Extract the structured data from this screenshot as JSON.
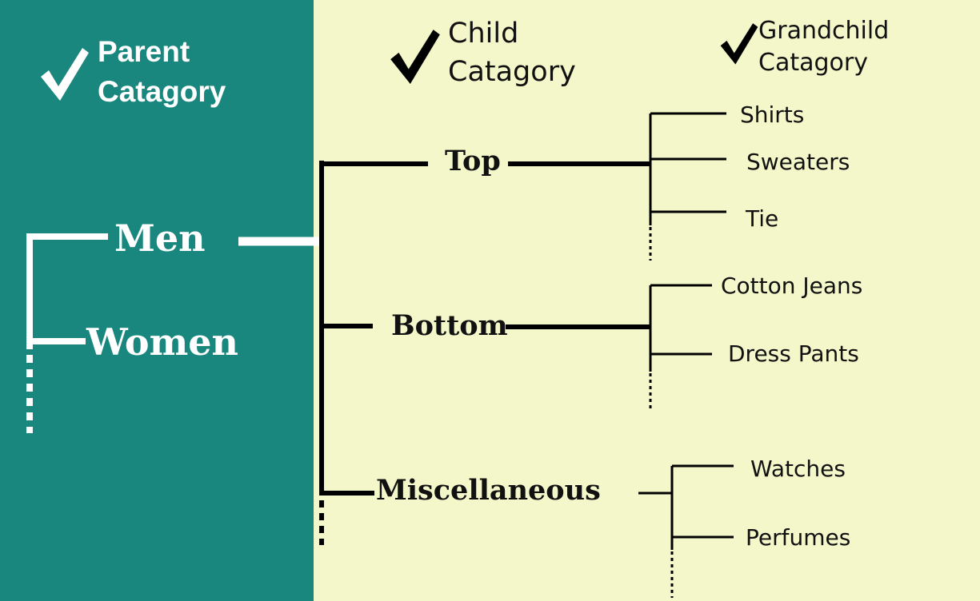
{
  "headers": {
    "parent": [
      "Parent",
      "Catagory"
    ],
    "child": [
      "Child",
      "Catagory"
    ],
    "grandchild": [
      "Grandchild",
      "Catagory"
    ],
    "check_icon": "check-icon"
  },
  "tree": {
    "parents": [
      "Men",
      "Women"
    ],
    "children": [
      {
        "label": "Top",
        "grandchildren": [
          "Shirts",
          "Sweaters",
          "Tie"
        ]
      },
      {
        "label": "Bottom",
        "grandchildren": [
          "Cotton Jeans",
          "Dress Pants"
        ]
      },
      {
        "label": "Miscellaneous",
        "grandchildren": [
          "Watches",
          "Perfumes"
        ]
      }
    ]
  },
  "colors": {
    "left_panel": "#1a877e",
    "right_panel": "#f3f7c9",
    "light_text": "#ffffff",
    "dark_text": "#111111"
  }
}
